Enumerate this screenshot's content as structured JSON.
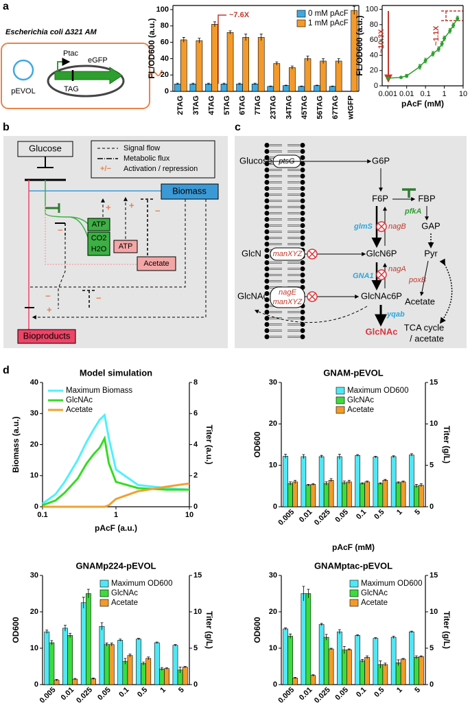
{
  "panel_labels": [
    "a",
    "b",
    "c",
    "d"
  ],
  "strain_diagram": {
    "title": "Escherichia coli Δ321 AM",
    "plasmid": "pEVOL",
    "promoter": "Ptac",
    "gene": "eGFP",
    "codon": "TAG"
  },
  "regulation_diagram": {
    "nodes": {
      "glucose": "Glucose",
      "biomass": "Biomass",
      "atp": "ATP",
      "co2": "CO2",
      "h2o": "H2O",
      "atp2": "ATP",
      "acetate": "Acetate",
      "bioproducts": "Bioproducts"
    },
    "legend": [
      "Signal flow",
      "Metabolic flux",
      "Activation / repression"
    ],
    "legend_symbol": "+/−",
    "plus": "+",
    "minus": "−"
  },
  "metabolism_diagram": {
    "metabolites": {
      "glucose": "Glucose",
      "g6p": "G6P",
      "f6p": "F6P",
      "fbp": "FBP",
      "gap": "GAP",
      "glcn": "GlcN",
      "glcn6p": "GlcN6P",
      "pyr": "Pyr",
      "glcnac_out": "GlcNAc",
      "glcnac6p": "GlcNAc6P",
      "acetate": "Acetate",
      "glcnac": "GlcNAc",
      "tca": "TCA cycle",
      "tca2": "/ acetate"
    },
    "genes": {
      "ptsG": "ptsG",
      "manXYZ": "manXYZ",
      "nagE": "nagE",
      "pfkA": "pfkA",
      "glmS": "glmS",
      "nagB": "nagB",
      "nagA": "nagA",
      "GNA1": "GNA1",
      "poxB": "poxB",
      "yqab": "yqab"
    }
  },
  "chart_data": [
    {
      "type": "bar",
      "categories": [
        "2TAG",
        "3TAG",
        "4TAG",
        "5TAG",
        "6TAG",
        "7TAG",
        "23TAG",
        "34TAG",
        "45TAG",
        "56TAG",
        "67TAG",
        "wtGFP"
      ],
      "series": [
        {
          "name": "0 mM pAcF",
          "color": "#3fa9e0",
          "values": [
            9,
            9,
            9,
            9,
            9,
            9,
            6,
            7,
            6,
            7,
            6,
            null
          ],
          "errors": [
            1,
            1,
            1,
            1,
            1,
            1,
            0.5,
            0.5,
            0.5,
            0.5,
            0.5,
            null
          ]
        },
        {
          "name": "1 mM pAcF",
          "color": "#f39a2b",
          "values": [
            63,
            62,
            82,
            72,
            66,
            66,
            34,
            29,
            40,
            37,
            37,
            99
          ],
          "errors": [
            3,
            3,
            3,
            2,
            4,
            4,
            2,
            2,
            3,
            3,
            3,
            5
          ]
        }
      ],
      "ylabel": "FL/OD600 (a.u.)",
      "ylim": [
        0,
        105
      ],
      "yticks": [
        0,
        20,
        40,
        60,
        80,
        100
      ],
      "legend": "upper right",
      "annotations": [
        "~7.6X"
      ]
    },
    {
      "type": "line",
      "x": [
        0.001,
        0.005,
        0.01,
        0.05,
        0.1,
        0.25,
        0.5,
        0.75,
        1,
        2,
        3,
        5
      ],
      "series": [
        {
          "color": "#2e9e2e",
          "values": [
            10,
            11,
            13,
            25,
            33,
            42,
            48,
            55,
            62,
            72,
            79,
            88
          ],
          "errors": [
            1,
            1,
            2,
            3,
            3,
            3,
            3,
            3,
            3,
            3,
            3,
            3
          ]
        }
      ],
      "markers": true,
      "xscale": "log",
      "xlabel": "pAcF (mM)",
      "ylabel": "FL/OD600 (a.u.)",
      "xlim": [
        0.0005,
        10
      ],
      "xticks": [
        0.001,
        0.01,
        0.1,
        1,
        10
      ],
      "ylim": [
        0,
        105
      ],
      "yticks": [
        0,
        20,
        40,
        60,
        80,
        100
      ],
      "annotations": [
        "~10.3X",
        "~1.1X"
      ]
    },
    {
      "type": "line",
      "title": "Model simulation",
      "x": [
        0.1,
        0.15,
        0.2,
        0.3,
        0.4,
        0.5,
        0.6,
        0.7,
        0.8,
        1,
        2,
        5,
        10
      ],
      "series": [
        {
          "name": "Maximum Biomass",
          "color": "#4ff0ff",
          "values": [
            1,
            4,
            8,
            15,
            21,
            25,
            28,
            29.5,
            22,
            12,
            7,
            6,
            5.5
          ]
        },
        {
          "name": "GlcNAc",
          "color": "#33dd22",
          "axis": "y2",
          "values": [
            0.1,
            0.4,
            0.9,
            1.8,
            2.8,
            3.4,
            3.8,
            4.4,
            2.8,
            1.6,
            1.2,
            1.1,
            1.1
          ]
        },
        {
          "name": "Acetate",
          "color": "#f0a030",
          "axis": "y2",
          "values": [
            0,
            0,
            0,
            0,
            0,
            0,
            0,
            0,
            0.1,
            0.5,
            1.0,
            1.3,
            1.5
          ]
        }
      ],
      "xscale": "log",
      "xlabel": "pAcF (a.u.)",
      "ylabel": "Biomass (a.u.)",
      "y2label": "Titer (a.u.)",
      "xlim": [
        0.1,
        10
      ],
      "xticks": [
        0.1,
        1,
        10
      ],
      "ylim": [
        0,
        40
      ],
      "yticks": [
        0,
        10,
        20,
        30,
        40
      ],
      "y2lim": [
        0,
        8
      ],
      "y2ticks": [
        0,
        2,
        4,
        6,
        8
      ],
      "legend": "upper left"
    },
    {
      "type": "bar",
      "title": "GNAM-pEVOL",
      "categories": [
        "0.005",
        "0.01",
        "0.025",
        "0.05",
        "0.1",
        "0.5",
        "1",
        "5"
      ],
      "series": [
        {
          "name": "Maximum OD600",
          "color": "#4fe8f5",
          "values": [
            12.2,
            12.1,
            12.1,
            12.1,
            12.4,
            12.0,
            12.1,
            12.5
          ],
          "errors": [
            0.5,
            0.5,
            0.3,
            0.6,
            0.2,
            0.2,
            0.2,
            0.3
          ]
        },
        {
          "name": "GlcNAc",
          "color": "#3ddc3d",
          "axis": "y2",
          "values": [
            2.8,
            2.6,
            2.8,
            2.9,
            2.8,
            2.8,
            2.9,
            2.5
          ],
          "errors": [
            0.2,
            0.1,
            0.2,
            0.2,
            0.1,
            0.1,
            0.1,
            0.2
          ]
        },
        {
          "name": "Acetate",
          "color": "#f39a2b",
          "axis": "y2",
          "values": [
            3.0,
            2.7,
            3.2,
            3.0,
            3.0,
            3.2,
            3.0,
            2.6
          ],
          "errors": [
            0.2,
            0.1,
            0.2,
            0.2,
            0.1,
            0.1,
            0.1,
            0.2
          ]
        }
      ],
      "xlabel": "pAcF (mM)",
      "ylabel": "OD600",
      "y2label": "Titer (g/L)",
      "ylim": [
        0,
        30
      ],
      "yticks": [
        0,
        10,
        20,
        30
      ],
      "y2lim": [
        0,
        15
      ],
      "y2ticks": [
        0,
        5,
        10,
        15
      ],
      "legend": "upper right"
    },
    {
      "type": "bar",
      "title": "GNAMp224-pEVOL",
      "categories": [
        "0.005",
        "0.01",
        "0.025",
        "0.05",
        "0.1",
        "0.5",
        "1",
        "5"
      ],
      "series": [
        {
          "name": "Maximum OD600",
          "color": "#4fe8f5",
          "values": [
            14.5,
            15.5,
            22.5,
            16,
            12.2,
            12.5,
            11.5,
            10.8
          ],
          "errors": [
            0.5,
            0.8,
            1.5,
            1,
            0.3,
            0.2,
            0.2,
            0.2
          ]
        },
        {
          "name": "GlcNAc",
          "color": "#3ddc3d",
          "axis": "y2",
          "values": [
            5.75,
            6.75,
            12.5,
            5.5,
            3.2,
            2.9,
            2.15,
            2.0
          ],
          "errors": [
            0.3,
            0.3,
            0.6,
            0.2,
            0.4,
            0.2,
            0.2,
            0.4
          ]
        },
        {
          "name": "Acetate",
          "color": "#f39a2b",
          "axis": "y2",
          "values": [
            0.6,
            0.75,
            0.8,
            5.5,
            4.0,
            3.6,
            2.2,
            2.4
          ],
          "errors": [
            0.1,
            0.1,
            0.1,
            0.2,
            0.2,
            0.2,
            0.1,
            0.1
          ]
        }
      ],
      "xlabel": "pAcF (mM)",
      "ylabel": "OD600",
      "y2label": "Titer (g/L)",
      "ylim": [
        0,
        30
      ],
      "yticks": [
        0,
        10,
        20,
        30
      ],
      "y2lim": [
        0,
        15
      ],
      "y2ticks": [
        0,
        5,
        10,
        15
      ],
      "legend": "upper right"
    },
    {
      "type": "bar",
      "title": "GNAMptac-pEVOL",
      "categories": [
        "0.005",
        "0.01",
        "0.025",
        "0.05",
        "0.1",
        "0.5",
        "1",
        "5"
      ],
      "series": [
        {
          "name": "Maximum OD600",
          "color": "#4fe8f5",
          "values": [
            15.3,
            25,
            16.5,
            14.5,
            13.5,
            12.7,
            13,
            14.5
          ],
          "errors": [
            0.3,
            2,
            0.3,
            0.6,
            0.2,
            0.2,
            0.3,
            0.2
          ]
        },
        {
          "name": "GlcNAc",
          "color": "#3ddc3d",
          "axis": "y2",
          "values": [
            6.65,
            12.5,
            6.5,
            4.75,
            3.25,
            2.75,
            3.0,
            3.75
          ],
          "errors": [
            0.3,
            0.6,
            0.4,
            0.5,
            0.2,
            0.5,
            0.4,
            0.2
          ]
        },
        {
          "name": "Acetate",
          "color": "#f39a2b",
          "axis": "y2",
          "values": [
            0.9,
            1.25,
            4.9,
            4.8,
            3.75,
            2.75,
            3.5,
            3.85
          ],
          "errors": [
            0.1,
            0.1,
            0.1,
            0.1,
            0.2,
            0.2,
            0.1,
            0.1
          ]
        }
      ],
      "xlabel": "pAcF (mM)",
      "ylabel": "OD600",
      "y2label": "Titer (g/L)",
      "ylim": [
        0,
        30
      ],
      "yticks": [
        0,
        10,
        20,
        30
      ],
      "y2lim": [
        0,
        15
      ],
      "y2ticks": [
        0,
        5,
        10,
        15
      ],
      "legend": "upper right"
    }
  ]
}
